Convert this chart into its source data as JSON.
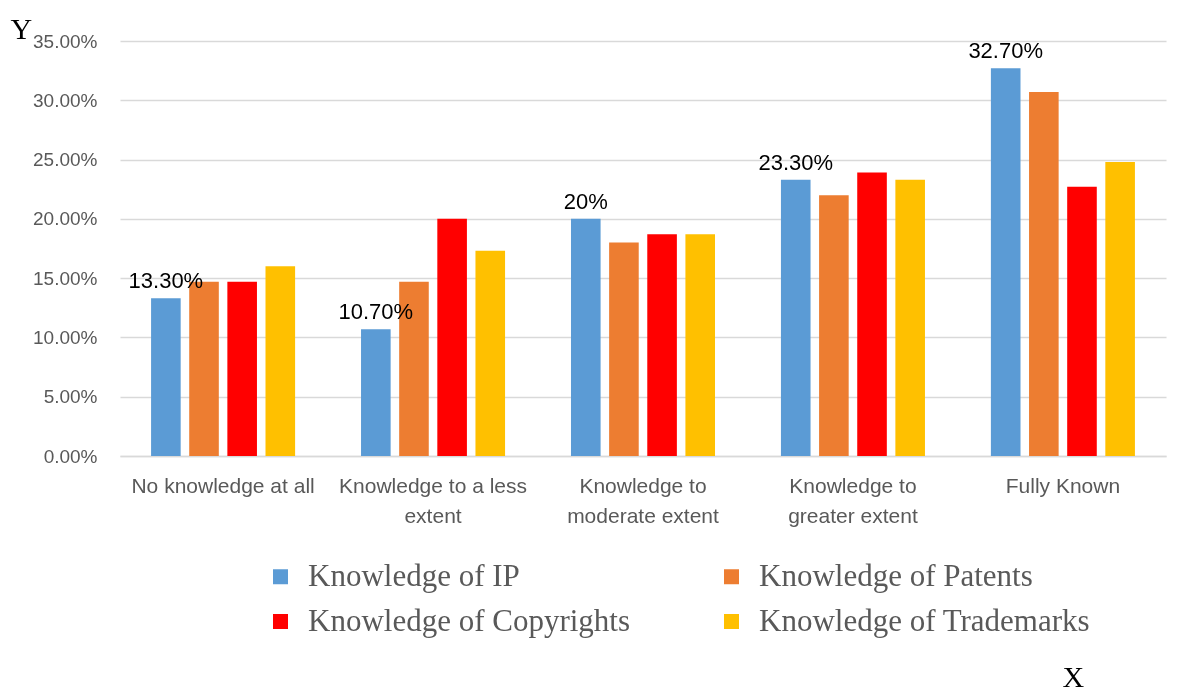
{
  "chart_data": {
    "type": "bar",
    "xlabel": "X",
    "ylabel": "Y",
    "categories": [
      "No knowledge at all",
      "Knowledge to a less extent",
      "Knowledge to moderate extent",
      "Knowledge to greater extent",
      "Fully Known"
    ],
    "series": [
      {
        "name": "Knowledge of IP",
        "color": "#5b9bd5",
        "values": [
          13.3,
          10.7,
          20,
          23.3,
          32.7
        ],
        "value_labels": [
          "13.30%",
          "10.70%",
          "20%",
          "23.30%",
          "32.70%"
        ]
      },
      {
        "name": "Knowledge of Patents",
        "color": "#ed7d31",
        "values": [
          14.7,
          14.7,
          18.0,
          22.0,
          30.7
        ]
      },
      {
        "name": "Knowledge of Copyrights",
        "color": "#ff0000",
        "values": [
          14.7,
          20.0,
          18.7,
          23.9,
          22.7
        ]
      },
      {
        "name": "Knowledge of Trademarks",
        "color": "#ffc000",
        "values": [
          16.0,
          17.3,
          18.7,
          23.3,
          24.8
        ]
      }
    ],
    "ylim": [
      0,
      35
    ],
    "yticks": [
      {
        "value": 0,
        "label": "0.00%"
      },
      {
        "value": 5,
        "label": "5.00%"
      },
      {
        "value": 10,
        "label": "10.00%"
      },
      {
        "value": 15,
        "label": "15.00%"
      },
      {
        "value": 20,
        "label": "20.00%"
      },
      {
        "value": 25,
        "label": "25.00%"
      },
      {
        "value": 30,
        "label": "30.00%"
      },
      {
        "value": 35,
        "label": "35.00%"
      }
    ],
    "grid": "y",
    "legend": "bottom"
  }
}
